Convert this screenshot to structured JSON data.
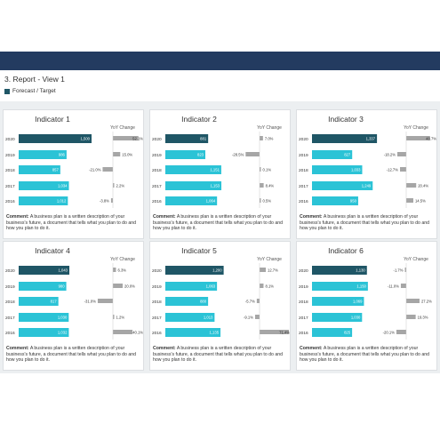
{
  "report": {
    "title": "3. Report - View 1",
    "legend_label": "Forecast / Target",
    "yoy_label": "YoY Change",
    "comment_label": "Comment:",
    "comment_text": "A business plan is a written description of your business's future, a document that tells what you plan to do and how you plan to do it."
  },
  "colors": {
    "header": "#233b60",
    "current": "#1f5666",
    "bar": "#2bc3d6",
    "delta": "#a6a6a6"
  },
  "chart_data": [
    {
      "type": "bar",
      "title": "Indicator 1",
      "categories": [
        "2020",
        "2019",
        "2018",
        "2017",
        "2016"
      ],
      "values": [
        1500,
        986,
        857,
        1034,
        1012
      ],
      "value_labels": [
        "1,500",
        "986",
        "857",
        "1,034",
        "1,012"
      ],
      "yoy": [
        52.1,
        15.0,
        -21.0,
        2.2,
        -3.8
      ],
      "yoy_labels": [
        "52.1%",
        "15.0%",
        "-21.0%",
        "2.2%",
        "-3.8%"
      ]
    },
    {
      "type": "bar",
      "title": "Indicator 2",
      "categories": [
        "2020",
        "2019",
        "2018",
        "2017",
        "2016"
      ],
      "values": [
        881,
        823,
        1151,
        1153,
        1064
      ],
      "value_labels": [
        "881",
        "823",
        "1,151",
        "1,153",
        "1,064"
      ],
      "yoy": [
        7.0,
        -28.5,
        0.1,
        8.4,
        0.5
      ],
      "yoy_labels": [
        "7.0%",
        "-28.5%",
        "0.1%",
        "8.4%",
        "0.5%"
      ]
    },
    {
      "type": "bar",
      "title": "Indicator 3",
      "categories": [
        "2020",
        "2019",
        "2018",
        "2017",
        "2016"
      ],
      "values": [
        1337,
        827,
        1033,
        1249,
        950
      ],
      "value_labels": [
        "1,337",
        "827",
        "1,033",
        "1,249",
        "950"
      ],
      "yoy": [
        48.7,
        -18.2,
        -12.7,
        20.4,
        14.5
      ],
      "yoy_labels": [
        "48.7%",
        "-18.2%",
        "-12.7%",
        "20.4%",
        "14.5%"
      ]
    },
    {
      "type": "bar",
      "title": "Indicator 4",
      "categories": [
        "2020",
        "2019",
        "2018",
        "2017",
        "2016"
      ],
      "values": [
        1043,
        980,
        817,
        1030,
        1032
      ],
      "value_labels": [
        "1,043",
        "980",
        "817",
        "1,030",
        "1,032"
      ],
      "yoy": [
        6.3,
        20.0,
        -31.0,
        1.2,
        40.1
      ],
      "yoy_labels": [
        "6.3%",
        "20.0%",
        "-31.0%",
        "1.2%",
        "40.1%"
      ]
    },
    {
      "type": "bar",
      "title": "Indicator 5",
      "categories": [
        "2020",
        "2019",
        "2018",
        "2017",
        "2016"
      ],
      "values": [
        1200,
        1063,
        880,
        1013,
        1135
      ],
      "value_labels": [
        "1,200",
        "1,063",
        "880",
        "1,013",
        "1,135"
      ],
      "yoy": [
        12.7,
        8.1,
        -5.7,
        -9.1,
        71.4
      ],
      "yoy_labels": [
        "12.7%",
        "8.1%",
        "-5.7%",
        "-9.1%",
        "71.4%"
      ]
    },
    {
      "type": "bar",
      "title": "Indicator 6",
      "categories": [
        "2020",
        "2019",
        "2018",
        "2017",
        "2016"
      ],
      "values": [
        1130,
        1150,
        1069,
        1030,
        825
      ],
      "value_labels": [
        "1,130",
        "1,150",
        "1,069",
        "1,030",
        "825"
      ],
      "yoy": [
        -1.7,
        -11.0,
        27.2,
        19.3,
        -20.1
      ],
      "yoy_labels": [
        "-1.7%",
        "-11.0%",
        "27.2%",
        "19.3%",
        "-20.1%"
      ]
    }
  ]
}
